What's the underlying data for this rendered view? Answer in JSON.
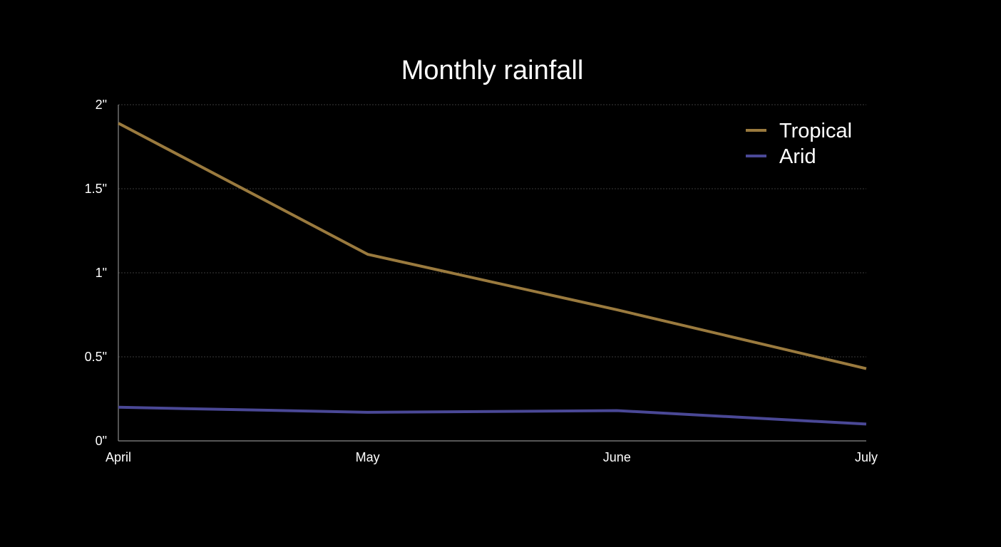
{
  "chart_data": {
    "type": "line",
    "title": "Monthly rainfall",
    "xlabel": "",
    "ylabel": "",
    "categories": [
      "April",
      "May",
      "June",
      "July"
    ],
    "series": [
      {
        "name": "Tropical",
        "values": [
          1.89,
          1.11,
          0.78,
          0.43
        ],
        "color": "#9a7a3e"
      },
      {
        "name": "Arid",
        "values": [
          0.2,
          0.17,
          0.18,
          0.1
        ],
        "color": "#4a4896"
      }
    ],
    "ylim": [
      0,
      2
    ],
    "yticks": [
      {
        "value": 0,
        "label": "0\""
      },
      {
        "value": 0.5,
        "label": "0.5\""
      },
      {
        "value": 1,
        "label": "1\""
      },
      {
        "value": 1.5,
        "label": "1.5\""
      },
      {
        "value": 2,
        "label": "2\""
      }
    ],
    "grid": true,
    "legend_position": "top-right"
  },
  "colors": {
    "background": "#000000",
    "text": "#ffffff",
    "grid": "#3a3a3a",
    "axis": "#8a8a8a"
  }
}
